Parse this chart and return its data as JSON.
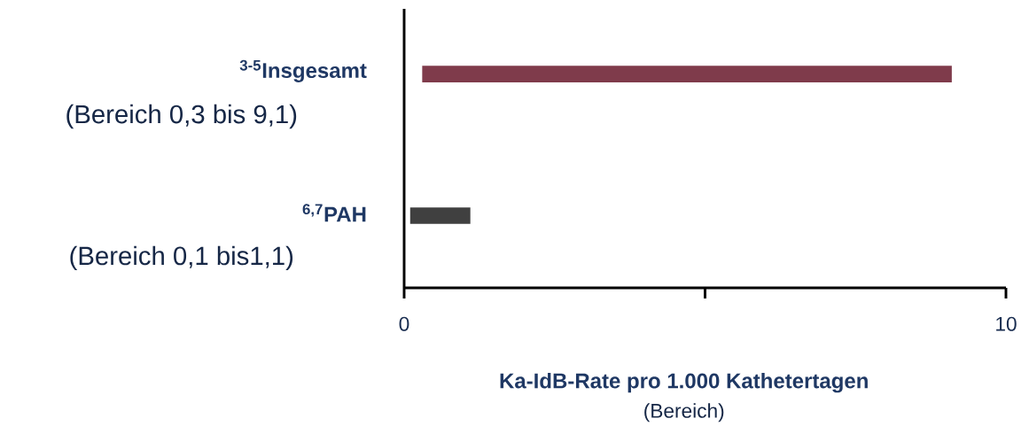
{
  "chart_data": {
    "type": "bar",
    "orientation": "horizontal",
    "categories": [
      "$^{3-5}$Insgesamt",
      "$^{6,7}$PAH"
    ],
    "base": [
      0.3,
      0.1
    ],
    "values": [
      8.8,
      1.0
    ],
    "colors": [
      "#7f3b4b",
      "#404040"
    ],
    "xlabel": "Ka-IdB-Rate pro 1.000 Kathetertagen",
    "xlim": [
      0,
      10
    ],
    "xticks": [
      0,
      {
        "value": 5,
        "label": null
      },
      10
    ],
    "annotations": [
      "(Bereich 0,3 bis 9,1)",
      "(Bereich 0,1 bis1,1)",
      "(Bereich)"
    ]
  }
}
